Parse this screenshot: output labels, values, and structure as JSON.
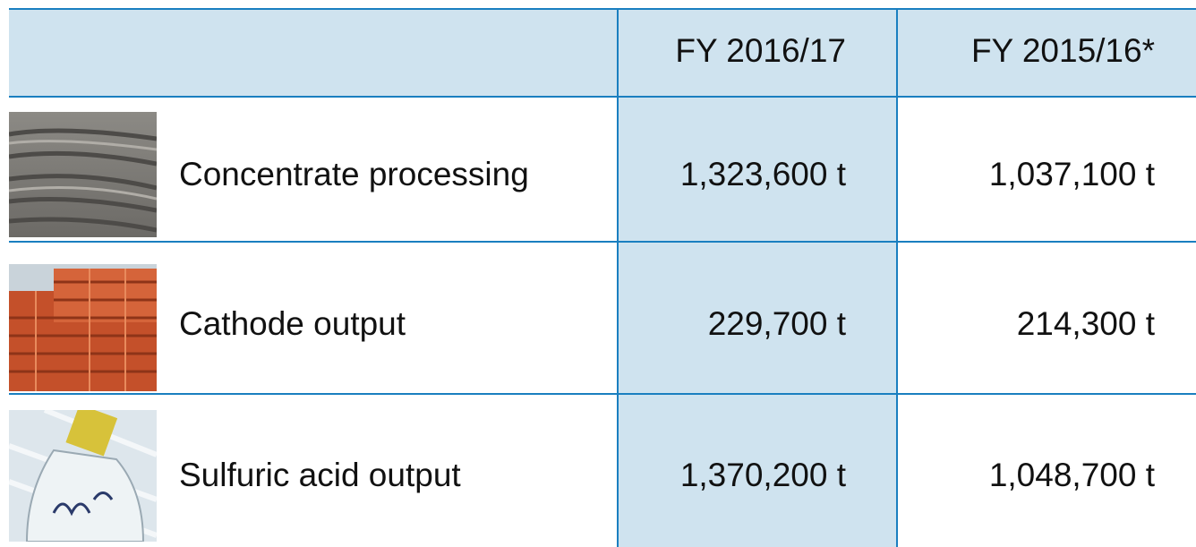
{
  "table": {
    "header": [
      "FY 2016/17",
      "FY 2015/16*"
    ],
    "rows": [
      [
        "Concentrate processing",
        "1,323,600 t",
        "1,037,100 t"
      ],
      [
        "Cathode output",
        "229,700 t",
        "214,300 t"
      ],
      [
        "Sulfuric acid output",
        "1,370,200 t",
        "1,048,700 t"
      ]
    ]
  }
}
